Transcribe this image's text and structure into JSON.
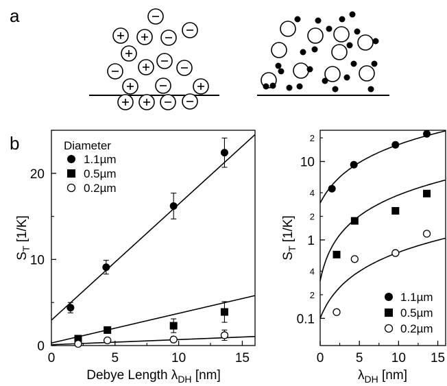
{
  "panel_labels": {
    "a": "a",
    "b": "b"
  },
  "colors": {
    "ink": "#000000",
    "background": "#ffffff"
  },
  "schematic": {
    "left_charges": [
      "−",
      "+",
      "+",
      "−",
      "−",
      "+",
      "−",
      "−",
      "+",
      "−",
      "+",
      "−",
      "+",
      "+",
      "+",
      "−",
      "−",
      "−",
      "−"
    ],
    "left_description_icons": "positive-charge-icon, negative-charge-icon",
    "right_description_icons": "large-particle-icon, small-ion-icon"
  },
  "chart_data": [
    {
      "type": "scatter",
      "panel": "b-left",
      "xlabel": "Debye Length λDH [nm]",
      "xlabel_main": "Debye Length λ",
      "xlabel_sub": "DH",
      "xlabel_unit": " [nm]",
      "ylabel_main": "S",
      "ylabel_sub": "T",
      "ylabel_unit": " [1/K]",
      "xlim": [
        0,
        16
      ],
      "ylim": [
        0,
        25
      ],
      "x_ticks": [
        "0",
        "5",
        "10",
        "15"
      ],
      "y_ticks": [
        "0",
        "10",
        "20"
      ],
      "legend_title": "Diameter",
      "legend_position": "top-left",
      "series": [
        {
          "name": "1.1µm",
          "marker": "filled-circle",
          "x": [
            1.5,
            4.3,
            9.6,
            13.6
          ],
          "y": [
            4.4,
            9.1,
            16.2,
            22.4
          ],
          "err": [
            0.6,
            0.8,
            1.5,
            1.7
          ],
          "fit": {
            "x": [
              0,
              16
            ],
            "y": [
              2.95,
              24.5
            ]
          }
        },
        {
          "name": "0.5µm",
          "marker": "filled-square",
          "x": [
            2.1,
            4.4,
            9.6,
            13.6
          ],
          "y": [
            0.8,
            1.8,
            2.3,
            3.9
          ],
          "err": [
            0.3,
            0.3,
            0.8,
            1.2
          ],
          "fit": {
            "x": [
              0,
              16
            ],
            "y": [
              0.3,
              5.8
            ]
          }
        },
        {
          "name": "0.2µm",
          "marker": "open-circle",
          "x": [
            2.1,
            4.4,
            9.6,
            13.6
          ],
          "y": [
            0.2,
            0.6,
            0.7,
            1.2
          ],
          "err": [
            0.1,
            0.2,
            0.3,
            0.6
          ],
          "fit": {
            "x": [
              0,
              16
            ],
            "y": [
              0.1,
              1.05
            ]
          }
        }
      ]
    },
    {
      "type": "scatter",
      "panel": "b-right",
      "yscale": "log",
      "xlabel_main": "λ",
      "xlabel_sub": "DH",
      "xlabel_unit": " [nm]",
      "ylabel_main": "S",
      "ylabel_sub": "T",
      "ylabel_unit": " [1/K]",
      "xlim": [
        0,
        16
      ],
      "ylim": [
        0.045,
        25
      ],
      "x_ticks": [
        "0",
        "5",
        "10",
        "15"
      ],
      "y_major_ticks": [
        {
          "v": 0.1,
          "label": "0.1"
        },
        {
          "v": 1,
          "label": "1"
        },
        {
          "v": 10,
          "label": "10"
        }
      ],
      "y_minor_ticks": [
        {
          "v": 0.2,
          "label": "2"
        },
        {
          "v": 0.4,
          "label": "4"
        },
        {
          "v": 2,
          "label": "2"
        },
        {
          "v": 4,
          "label": "4"
        },
        {
          "v": 20,
          "label": "2"
        }
      ],
      "legend_position": "bottom-right",
      "series": [
        {
          "name": "1.1µm",
          "marker": "filled-circle",
          "x": [
            1.5,
            4.3,
            9.6,
            13.6
          ],
          "y": [
            4.5,
            9.1,
            16.3,
            22.5
          ],
          "fit": {
            "intercept": 2.95,
            "slope": 1.35
          }
        },
        {
          "name": "0.5µm",
          "marker": "filled-square",
          "x": [
            2.1,
            4.4,
            9.6,
            13.6
          ],
          "y": [
            0.65,
            1.75,
            2.35,
            3.9
          ],
          "fit": {
            "intercept": 0.3,
            "slope": 0.344
          }
        },
        {
          "name": "0.2µm",
          "marker": "open-circle",
          "x": [
            2.1,
            4.4,
            9.6,
            13.6
          ],
          "y": [
            0.12,
            0.57,
            0.68,
            1.2
          ],
          "fit": {
            "intercept": 0.1,
            "slope": 0.0595
          }
        }
      ]
    }
  ]
}
